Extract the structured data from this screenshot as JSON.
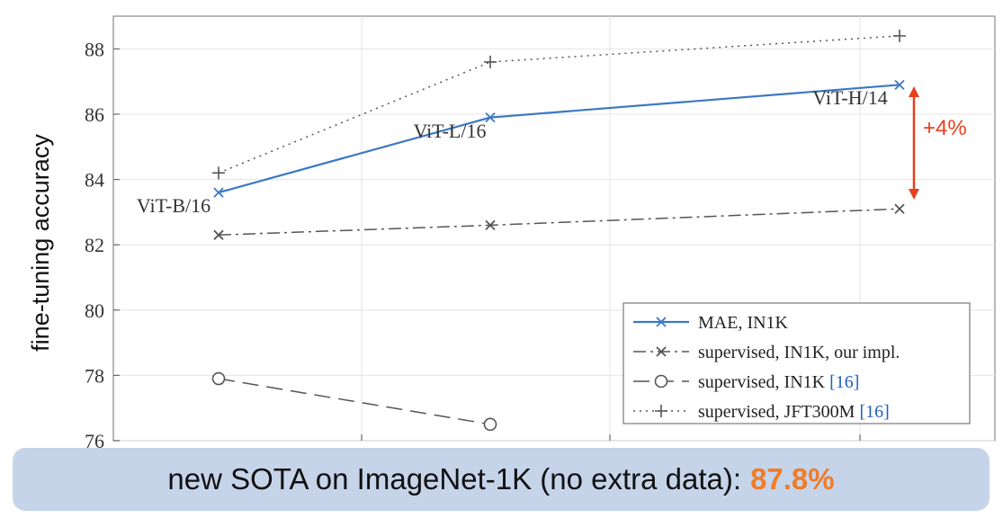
{
  "chart_data": {
    "type": "line",
    "title": "",
    "xlabel": "",
    "ylabel": "fine-tuning accuracy",
    "ylim": [
      76,
      89
    ],
    "yticks": [
      76,
      78,
      80,
      82,
      84,
      86,
      88
    ],
    "model_labels": [
      "ViT-B/16",
      "ViT-L/16",
      "ViT-H/14"
    ],
    "series": [
      {
        "name": "MAE, IN1K",
        "style": "solid",
        "marker": "x",
        "color": "#3b78c4",
        "values": [
          83.6,
          85.9,
          86.9
        ]
      },
      {
        "name": "supervised, IN1K, our impl.",
        "style": "dashdot",
        "marker": "x",
        "color": "#555555",
        "values": [
          82.3,
          82.6,
          83.1
        ]
      },
      {
        "name": "supervised, IN1K",
        "cite": "[16]",
        "style": "dashed",
        "marker": "o",
        "color": "#555555",
        "values": [
          77.9,
          76.5,
          null
        ]
      },
      {
        "name": "supervised, JFT300M",
        "cite": "[16]",
        "style": "dotted",
        "marker": "+",
        "color": "#555555",
        "values": [
          84.2,
          87.6,
          88.4
        ]
      }
    ],
    "annotation": {
      "text": "+4%",
      "color": "#e8401c"
    },
    "grid": true,
    "legend_position": "bottom-right"
  },
  "banner": {
    "text": "new SOTA on ImageNet-1K (no extra data):",
    "highlight": "87.8%",
    "highlight_color": "#ef7d2a"
  }
}
